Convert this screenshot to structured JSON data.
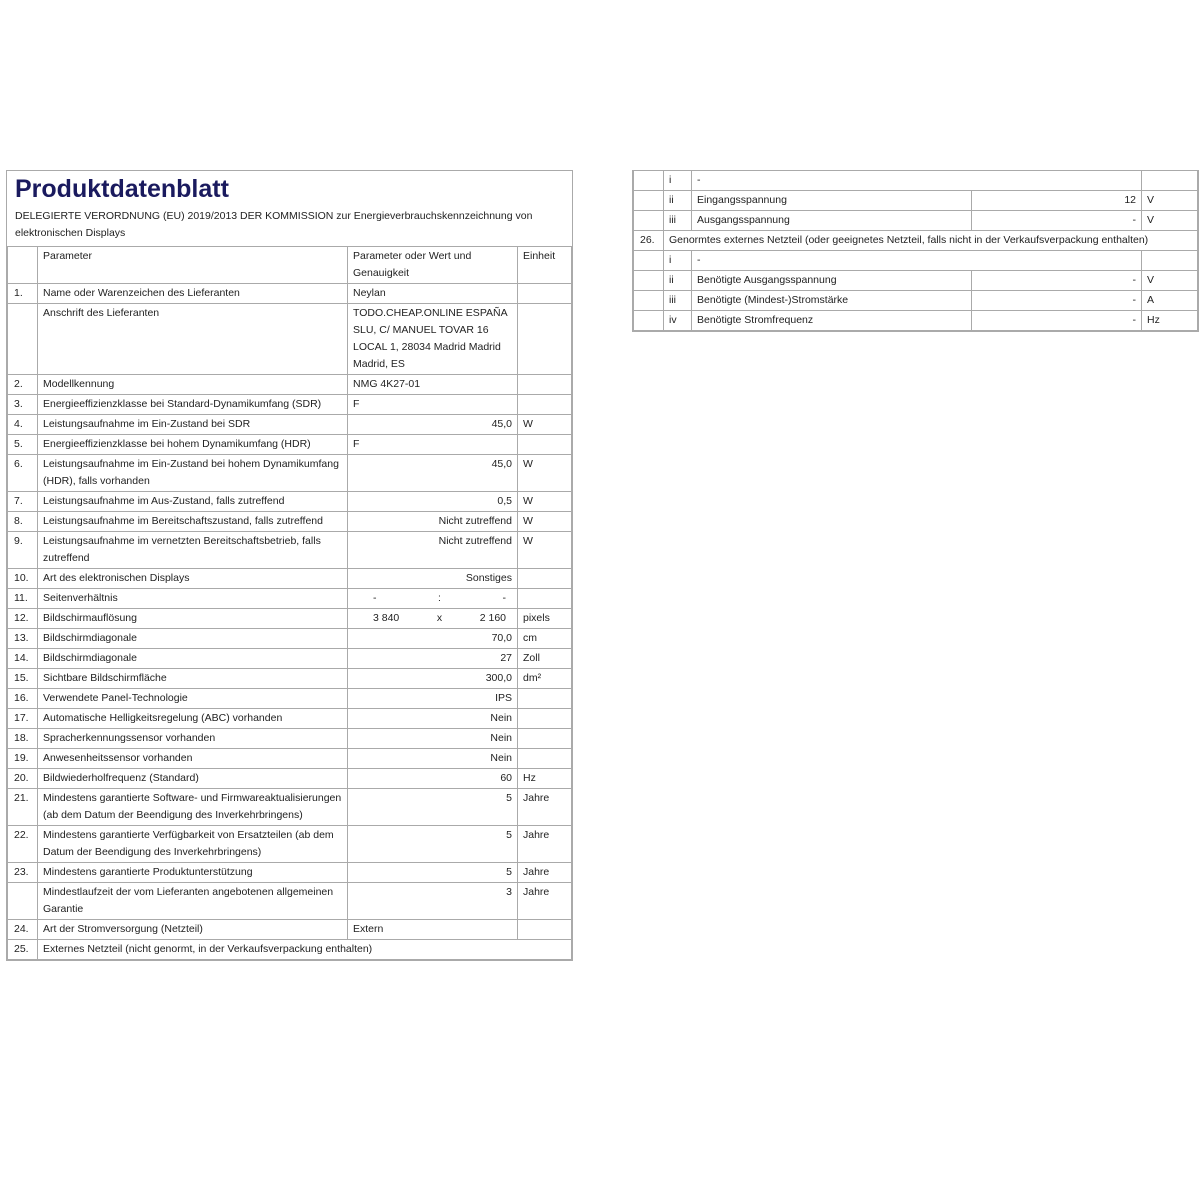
{
  "title": "Produktdatenblatt",
  "subtitle": "DELEGIERTE VERORDNUNG (EU) 2019/2013 DER KOMMISSION zur Energieverbrauchskennzeichnung von elektronischen Displays",
  "headers": {
    "parameter": "Parameter",
    "value": "Parameter oder Wert und Genauigkeit",
    "unit": "Einheit"
  },
  "rows": [
    {
      "n": "1.",
      "p": "Name oder Warenzeichen des Lieferanten",
      "v": "Neylan",
      "u": "",
      "align": "left"
    },
    {
      "n": "",
      "p": "Anschrift des Lieferanten",
      "v": "TODO.CHEAP.ONLINE ESPAÑA SLU, C/ MANUEL TOVAR 16 LOCAL 1, 28034 Madrid Madrid Madrid, ES",
      "u": "",
      "align": "left"
    },
    {
      "n": "2.",
      "p": "Modellkennung",
      "v": "NMG 4K27-01",
      "u": "",
      "align": "left"
    },
    {
      "n": "3.",
      "p": "Energieeffizienzklasse bei Standard-Dynamikumfang (SDR)",
      "v": "F",
      "u": "",
      "align": "left"
    },
    {
      "n": "4.",
      "p": "Leistungsaufnahme im Ein-Zustand bei SDR",
      "v": "45,0",
      "u": "W"
    },
    {
      "n": "5.",
      "p": "Energieeffizienzklasse bei hohem Dynamikumfang (HDR)",
      "v": "F",
      "u": "",
      "align": "left"
    },
    {
      "n": "6.",
      "p": "Leistungsaufnahme im Ein-Zustand bei hohem Dynamikumfang (HDR), falls vorhanden",
      "v": "45,0",
      "u": "W"
    },
    {
      "n": "7.",
      "p": "Leistungsaufnahme im Aus-Zustand, falls zutreffend",
      "v": "0,5",
      "u": "W"
    },
    {
      "n": "8.",
      "p": "Leistungsaufnahme im Bereitschaftszustand, falls zutreffend",
      "v": "Nicht zutreffend",
      "u": "W"
    },
    {
      "n": "9.",
      "p": "Leistungsaufnahme im vernetzten Bereitschaftsbetrieb, falls zutreffend",
      "v": "Nicht zutreffend",
      "u": "W"
    },
    {
      "n": "10.",
      "p": "Art des elektronischen Displays",
      "v": "Sonstiges",
      "u": ""
    },
    {
      "n": "11.",
      "p": "Seitenverhältnis",
      "v1": "-",
      "sep": ":",
      "v2": "-",
      "u": ""
    },
    {
      "n": "12.",
      "p": "Bildschirmauflösung",
      "v1": "3 840",
      "sep": "x",
      "v2": "2 160",
      "u": "pixels"
    },
    {
      "n": "13.",
      "p": "Bildschirmdiagonale",
      "v": "70,0",
      "u": "cm"
    },
    {
      "n": "14.",
      "p": "Bildschirmdiagonale",
      "v": "27",
      "u": "Zoll"
    },
    {
      "n": "15.",
      "p": "Sichtbare Bildschirmfläche",
      "v": "300,0",
      "u": "dm²"
    },
    {
      "n": "16.",
      "p": "Verwendete Panel-Technologie",
      "v": "IPS",
      "u": ""
    },
    {
      "n": "17.",
      "p": "Automatische Helligkeitsregelung (ABC) vorhanden",
      "v": "Nein",
      "u": ""
    },
    {
      "n": "18.",
      "p": "Spracherkennungssensor vorhanden",
      "v": "Nein",
      "u": ""
    },
    {
      "n": "19.",
      "p": "Anwesenheitssensor vorhanden",
      "v": "Nein",
      "u": ""
    },
    {
      "n": "20.",
      "p": "Bildwiederholfrequenz (Standard)",
      "v": "60",
      "u": "Hz"
    },
    {
      "n": "21.",
      "p": "Mindestens garantierte Software- und Firmwareaktualisierungen (ab dem Datum der Beendigung des Inverkehrbringens)",
      "v": "5",
      "u": "Jahre"
    },
    {
      "n": "22.",
      "p": "Mindestens garantierte Verfügbarkeit von Ersatzteilen (ab dem Datum der Beendigung des Inverkehrbringens)",
      "v": "5",
      "u": "Jahre"
    },
    {
      "n": "23.",
      "p": "Mindestens garantierte Produktunterstützung",
      "v": "5",
      "u": "Jahre"
    },
    {
      "n": "",
      "p": "Mindestlaufzeit der vom Lieferanten angebotenen allgemeinen Garantie",
      "v": "3",
      "u": "Jahre"
    },
    {
      "n": "24.",
      "p": "Art der Stromversorgung (Netzteil)",
      "v": "Extern",
      "u": "",
      "align": "left"
    }
  ],
  "row25": {
    "n": "25.",
    "p": "Externes Netzteil (nicht genormt, in der Verkaufsverpackung enthalten)"
  },
  "right": {
    "rows25": [
      {
        "r": "i",
        "p": "-",
        "full": true
      },
      {
        "r": "ii",
        "p": "Eingangsspannung",
        "v": "12",
        "u": "V"
      },
      {
        "r": "iii",
        "p": "Ausgangsspannung",
        "v": "-",
        "u": "V"
      }
    ],
    "row26": {
      "n": "26.",
      "p": "Genormtes externes Netzteil (oder geeignetes Netzteil, falls nicht in der Verkaufsverpackung enthalten)"
    },
    "rows26": [
      {
        "r": "i",
        "p": "-",
        "full": true
      },
      {
        "r": "ii",
        "p": "Benötigte Ausgangsspannung",
        "v": "-",
        "u": "V"
      },
      {
        "r": "iii",
        "p": "Benötigte (Mindest-)Stromstärke",
        "v": "-",
        "u": "A"
      },
      {
        "r": "iv",
        "p": "Benötigte Stromfrequenz",
        "v": "-",
        "u": "Hz"
      }
    ]
  }
}
